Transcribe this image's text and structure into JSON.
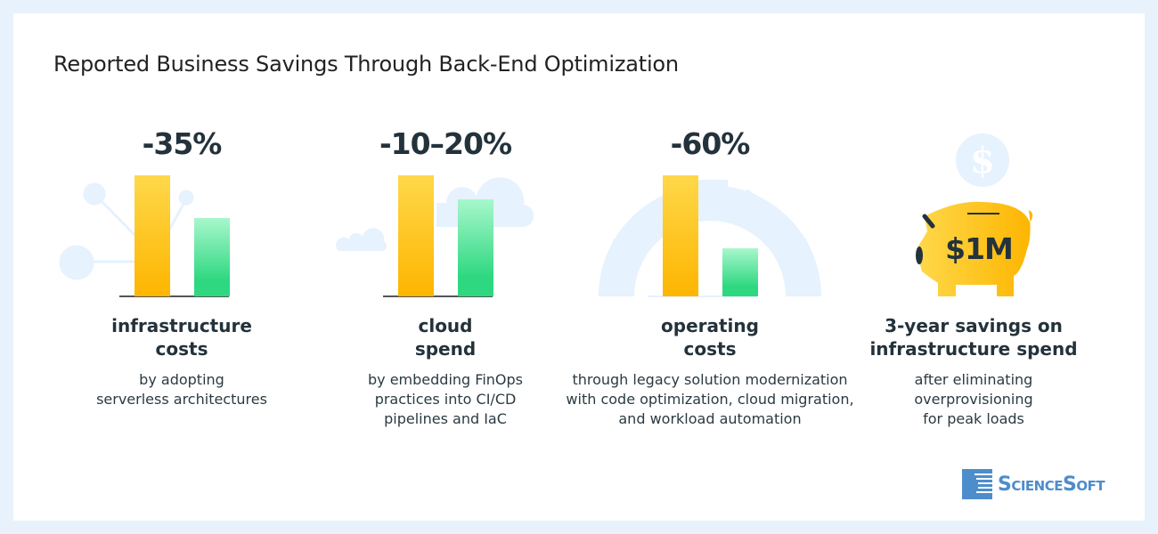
{
  "title": "Reported Business Savings Through Back-End Optimization",
  "colors": {
    "yellow": "#fdb500",
    "green": "#2ed880",
    "decor": "#e6f2fd",
    "text": "#23323b",
    "brand": "#4d8dcc"
  },
  "stats": [
    {
      "value": "-35%",
      "head_lines": [
        "infrastructure",
        "costs"
      ],
      "desc_lines": [
        "by adopting",
        "serverless architectures"
      ],
      "after_fraction": 0.65,
      "decor_icon": "network-nodes-icon"
    },
    {
      "value": "-10–20%",
      "head_lines": [
        "cloud",
        "spend"
      ],
      "desc_lines": [
        "by embedding FinOps",
        "practices into CI/CD",
        "pipelines and IaC"
      ],
      "after_fraction": 0.8,
      "decor_icon": "cloud-icon"
    },
    {
      "value": "-60%",
      "head_lines": [
        "operating",
        "costs"
      ],
      "desc_lines": [
        "through legacy solution modernization",
        "with code optimization, cloud migration,",
        "and workload automation"
      ],
      "after_fraction": 0.4,
      "decor_icon": "gear-icon"
    },
    {
      "value": "$1M",
      "head_lines": [
        "3-year savings on",
        "infrastructure spend"
      ],
      "desc_lines": [
        "after eliminating",
        "overprovisioning",
        "for peak loads"
      ],
      "decor_icon": "piggy-bank-icon"
    }
  ],
  "coin_symbol": "$",
  "logo": {
    "text": "ScienceSoft"
  }
}
